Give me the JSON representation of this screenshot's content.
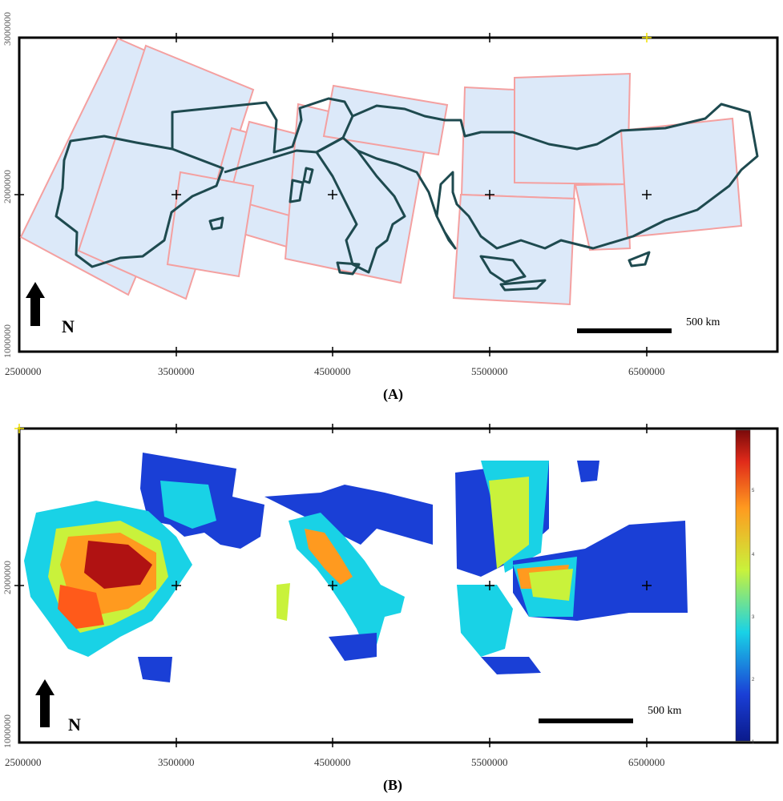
{
  "panel_a": {
    "label": "(A)",
    "x_ticks": [
      "2500000",
      "3500000",
      "4500000",
      "5500000",
      "6500000"
    ],
    "y_ticks": [
      "3000000",
      "2000000",
      "1000000"
    ],
    "scale_bar": "500 km",
    "north": "N",
    "colors": {
      "tile_fill": "#dce9f9",
      "tile_stroke": "#f4a0a0",
      "coast": "#1e4a4f",
      "frame": "#000000"
    }
  },
  "panel_b": {
    "label": "(B)",
    "x_ticks": [
      "2500000",
      "3500000",
      "4500000",
      "5500000",
      "6500000"
    ],
    "y_ticks": [
      "2000000",
      "1000000"
    ],
    "scale_bar": "500 km",
    "north": "N",
    "colorbar_ticks": [
      "5",
      "4",
      "3",
      "2",
      "1"
    ],
    "colors": {
      "low": "#1a3fd6",
      "mid_low": "#19d2e6",
      "mid": "#c9f23b",
      "mid_high": "#ff9a1f",
      "high": "#b01212"
    }
  }
}
